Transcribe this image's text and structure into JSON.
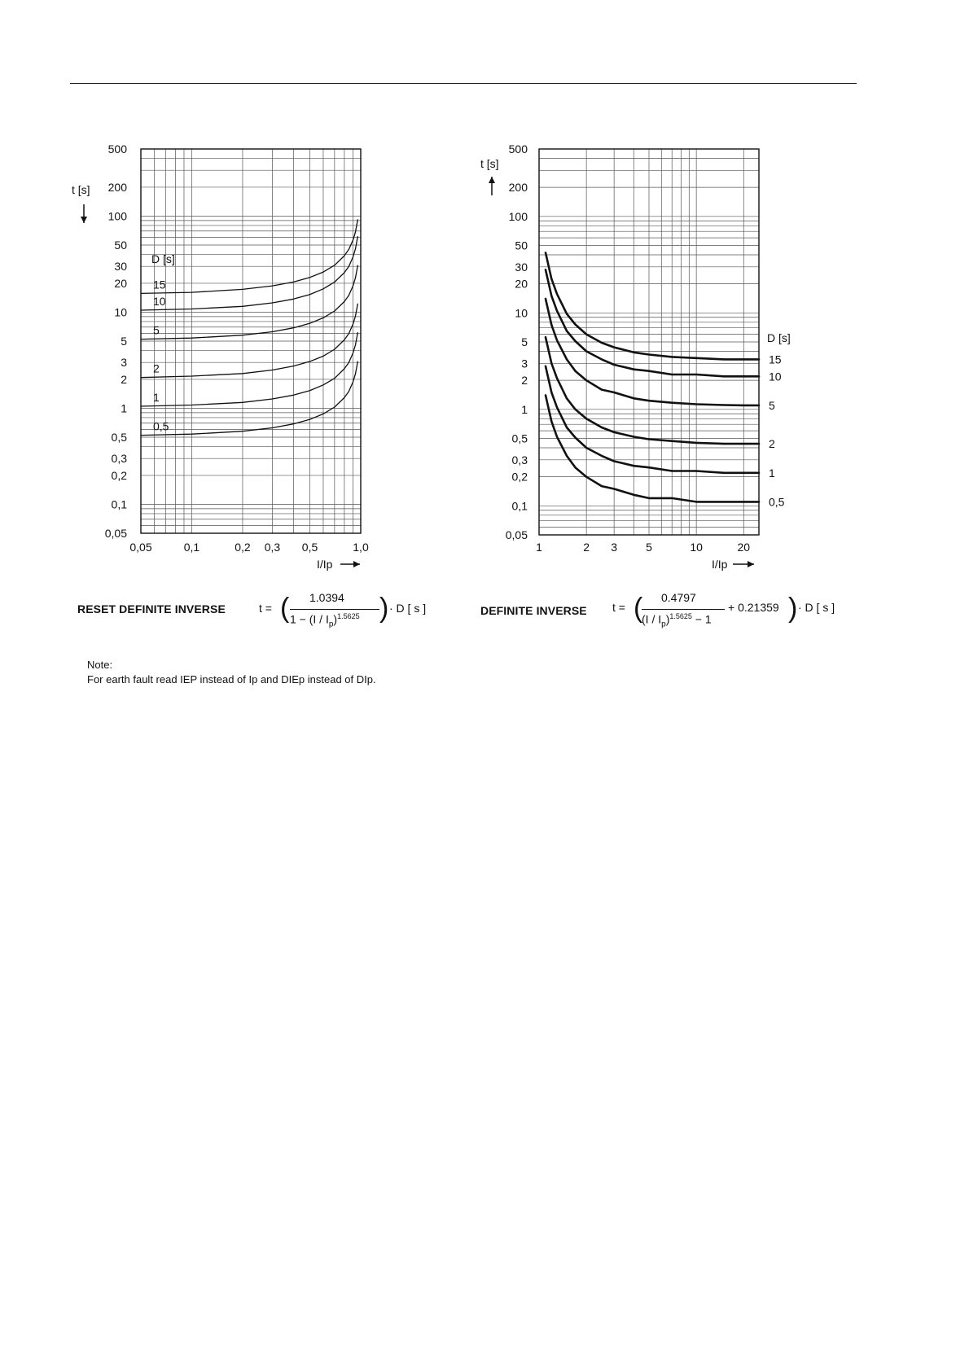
{
  "chart_data": [
    {
      "type": "line",
      "name": "RESET DEFINITE INVERSE",
      "xscale": "log",
      "yscale": "log",
      "xlim": [
        0.05,
        1.0
      ],
      "ylim": [
        0.05,
        500
      ],
      "xlabel": "I/Ip",
      "ylabel": "t [s]",
      "legend_title": "D [s]",
      "x_ticks": [
        "0,05",
        "0,1",
        "0,2",
        "0,3",
        "0,5",
        "1,0"
      ],
      "x_tick_values": [
        0.05,
        0.1,
        0.2,
        0.3,
        0.5,
        1.0
      ],
      "y_ticks": [
        "0,05",
        "0,1",
        "0,2",
        "0,3",
        "0,5",
        "1",
        "2",
        "3",
        "5",
        "10",
        "20",
        "30",
        "50",
        "100",
        "200",
        "500"
      ],
      "y_tick_values": [
        0.05,
        0.1,
        0.2,
        0.3,
        0.5,
        1,
        2,
        3,
        5,
        10,
        20,
        30,
        50,
        100,
        200,
        500
      ],
      "x": [
        0.05,
        0.1,
        0.2,
        0.3,
        0.4,
        0.5,
        0.6,
        0.7,
        0.8,
        0.85,
        0.9,
        0.93,
        0.96
      ],
      "series": [
        {
          "name": "15",
          "values": [
            15.7,
            16.1,
            17.3,
            18.8,
            20.6,
            23.0,
            26.2,
            30.8,
            38.7,
            45.1,
            56.3,
            68.3,
            91.7
          ]
        },
        {
          "name": "10",
          "values": [
            10.5,
            10.8,
            11.5,
            12.5,
            13.7,
            15.3,
            17.5,
            20.6,
            25.8,
            30.0,
            37.6,
            45.6,
            61.2
          ]
        },
        {
          "name": "5",
          "values": [
            5.24,
            5.39,
            5.76,
            6.26,
            6.87,
            7.67,
            8.74,
            10.3,
            12.9,
            15.0,
            18.8,
            22.8,
            30.6
          ]
        },
        {
          "name": "2",
          "values": [
            2.09,
            2.16,
            2.3,
            2.5,
            2.75,
            3.07,
            3.49,
            4.11,
            5.16,
            6.01,
            7.51,
            9.11,
            12.2
          ]
        },
        {
          "name": "1",
          "values": [
            1.05,
            1.08,
            1.15,
            1.25,
            1.37,
            1.53,
            1.75,
            2.05,
            2.58,
            3.0,
            3.76,
            4.55,
            6.12
          ]
        },
        {
          "name": "0,5",
          "values": [
            0.524,
            0.539,
            0.576,
            0.626,
            0.687,
            0.767,
            0.874,
            1.03,
            1.29,
            1.5,
            1.88,
            2.28,
            3.06
          ]
        }
      ],
      "formula": {
        "prefix": "t =",
        "numerator": "1.0394",
        "denominator": "1 − (I / I",
        "denominator_sub": "p",
        "denominator_close": ")",
        "exponent": "1.5625",
        "suffix": "· D  [ s ]"
      }
    },
    {
      "type": "line",
      "name": "DEFINITE INVERSE",
      "xscale": "log",
      "yscale": "log",
      "xlim": [
        1,
        25
      ],
      "ylim": [
        0.05,
        500
      ],
      "xlabel": "I/Ip",
      "ylabel": "t [s]",
      "legend_title": "D [s]",
      "x_ticks": [
        "1",
        "2",
        "3",
        "5",
        "10",
        "20"
      ],
      "x_tick_values": [
        1,
        2,
        3,
        5,
        10,
        20
      ],
      "y_ticks": [
        "0,05",
        "0,1",
        "0,2",
        "0,3",
        "0,5",
        "1",
        "2",
        "3",
        "5",
        "10",
        "20",
        "30",
        "50",
        "100",
        "200",
        "500"
      ],
      "y_tick_values": [
        0.05,
        0.1,
        0.2,
        0.3,
        0.5,
        1,
        2,
        3,
        5,
        10,
        20,
        30,
        50,
        100,
        200,
        500
      ],
      "x": [
        1.1,
        1.2,
        1.3,
        1.5,
        1.7,
        2,
        2.5,
        3,
        4,
        5,
        7,
        10,
        15,
        20,
        25
      ],
      "series": [
        {
          "name": "15",
          "values": [
            42.1,
            22.5,
            15.7,
            9.8,
            7.6,
            6.0,
            4.9,
            4.4,
            3.9,
            3.7,
            3.5,
            3.4,
            3.3,
            3.3,
            3.3
          ]
        },
        {
          "name": "10",
          "values": [
            28.0,
            15.0,
            10.5,
            6.5,
            5.1,
            4.0,
            3.3,
            2.9,
            2.6,
            2.5,
            2.3,
            2.3,
            2.2,
            2.2,
            2.2
          ]
        },
        {
          "name": "5",
          "values": [
            14.0,
            7.5,
            5.2,
            3.3,
            2.5,
            2.0,
            1.6,
            1.5,
            1.3,
            1.23,
            1.17,
            1.13,
            1.11,
            1.1,
            1.1
          ]
        },
        {
          "name": "2",
          "values": [
            5.6,
            3.0,
            2.1,
            1.3,
            1.0,
            0.8,
            0.65,
            0.58,
            0.52,
            0.49,
            0.47,
            0.45,
            0.44,
            0.44,
            0.44
          ]
        },
        {
          "name": "1",
          "values": [
            2.8,
            1.5,
            1.05,
            0.65,
            0.51,
            0.4,
            0.33,
            0.29,
            0.26,
            0.25,
            0.23,
            0.23,
            0.22,
            0.22,
            0.22
          ]
        },
        {
          "name": "0,5",
          "values": [
            1.4,
            0.75,
            0.52,
            0.33,
            0.25,
            0.2,
            0.16,
            0.15,
            0.13,
            0.12,
            0.12,
            0.11,
            0.11,
            0.11,
            0.11
          ]
        }
      ],
      "formula": {
        "prefix": "t =",
        "numerator": "0.4797",
        "denominator": "(I / I",
        "denominator_sub": "p",
        "denominator_close": ")",
        "exponent": "1.5625",
        "denominator_tail": " − 1",
        "plus": "+ 0.21359",
        "suffix": "· D  [ s ]"
      }
    }
  ],
  "note": {
    "heading": "Note:",
    "text": "For earth fault read IEP instead of Ip and DIEp instead of DIp."
  }
}
